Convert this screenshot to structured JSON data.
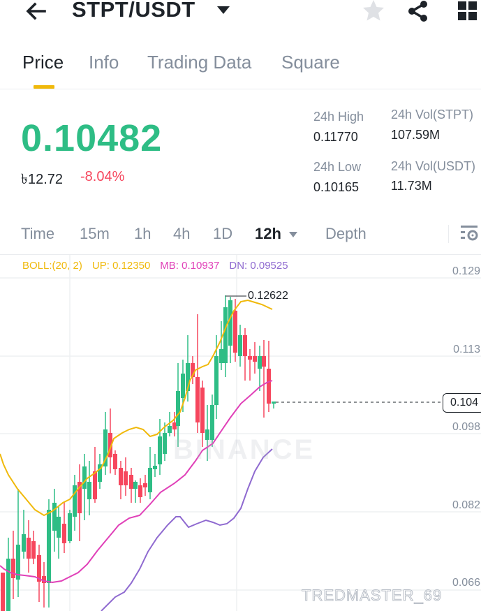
{
  "header": {
    "title": "STPT/USDT",
    "icons": [
      "back-arrow-icon",
      "caret-down-icon",
      "star-icon",
      "share-icon",
      "grid-menu-icon"
    ]
  },
  "tabs": [
    {
      "label": "Price",
      "active": true
    },
    {
      "label": "Info",
      "active": false
    },
    {
      "label": "Trading Data",
      "active": false
    },
    {
      "label": "Square",
      "active": false
    }
  ],
  "ticker": {
    "last_price": "0.10482",
    "fiat_price": "৳12.72",
    "change_pct": "-8.04%",
    "high_24h_label": "24h High",
    "high_24h": "0.11770",
    "low_24h_label": "24h Low",
    "low_24h": "0.10165",
    "vol_base_label": "24h Vol(STPT)",
    "vol_base": "107.59M",
    "vol_quote_label": "24h Vol(USDT)",
    "vol_quote": "11.73M"
  },
  "intervals": {
    "items": [
      "Time",
      "15m",
      "1h",
      "4h",
      "1D",
      "12h",
      "Depth"
    ],
    "active": "12h",
    "settings_icon": "chart-settings-icon"
  },
  "indicator": {
    "boll": "BOLL:(20, 2)",
    "up": "UP: 0.12350",
    "mb": "MB: 0.10937",
    "dn": "DN: 0.09525",
    "colors": {
      "up": "#f0b90b",
      "mb": "#e040b8",
      "dn": "#8f6ad0"
    }
  },
  "chart_data": {
    "type": "candlestick",
    "title": "STPT/USDT 12h",
    "y_ticks": [
      "0.129",
      "0.113",
      "0.098",
      "0.082",
      "0.066"
    ],
    "current_price_label": "0.104",
    "high_marker": "0.12622",
    "watermark": "BINANCE",
    "colors": {
      "up": "#2ebd85",
      "down": "#f6465d"
    }
  },
  "credit": "TREDMASTER_69"
}
